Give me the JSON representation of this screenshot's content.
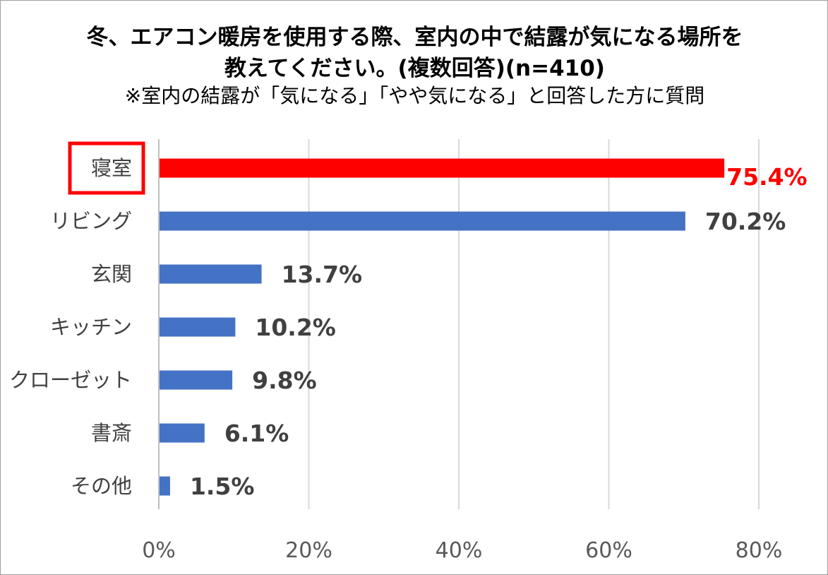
{
  "title_line1": "冬、エアコン暖房を使用する際、室内の中で結露が気になる場所を",
  "title_line2": "教えてください。(複数回答)(n=410)",
  "subtitle": "※室内の結露が「気になる」「やや気になる」と回答した方に質問",
  "colors": {
    "highlight": "#ff0000",
    "bar": "#4472c4",
    "grid": "#d9d9d9",
    "label": "#404040"
  },
  "chart_data": {
    "type": "bar",
    "orientation": "horizontal",
    "categories": [
      "寝室",
      "リビング",
      "玄関",
      "キッチン",
      "クローゼット",
      "書斎",
      "その他"
    ],
    "values": [
      75.4,
      70.2,
      13.7,
      10.2,
      9.8,
      6.1,
      1.5
    ],
    "value_labels": [
      "75.4%",
      "70.2%",
      "13.7%",
      "10.2%",
      "9.8%",
      "6.1%",
      "1.5%"
    ],
    "highlighted_category": "寝室",
    "xlim": [
      0,
      80
    ],
    "xticks": [
      0,
      20,
      40,
      60,
      80
    ],
    "xtick_labels": [
      "0%",
      "20%",
      "40%",
      "60%",
      "80%"
    ],
    "grid": true
  }
}
